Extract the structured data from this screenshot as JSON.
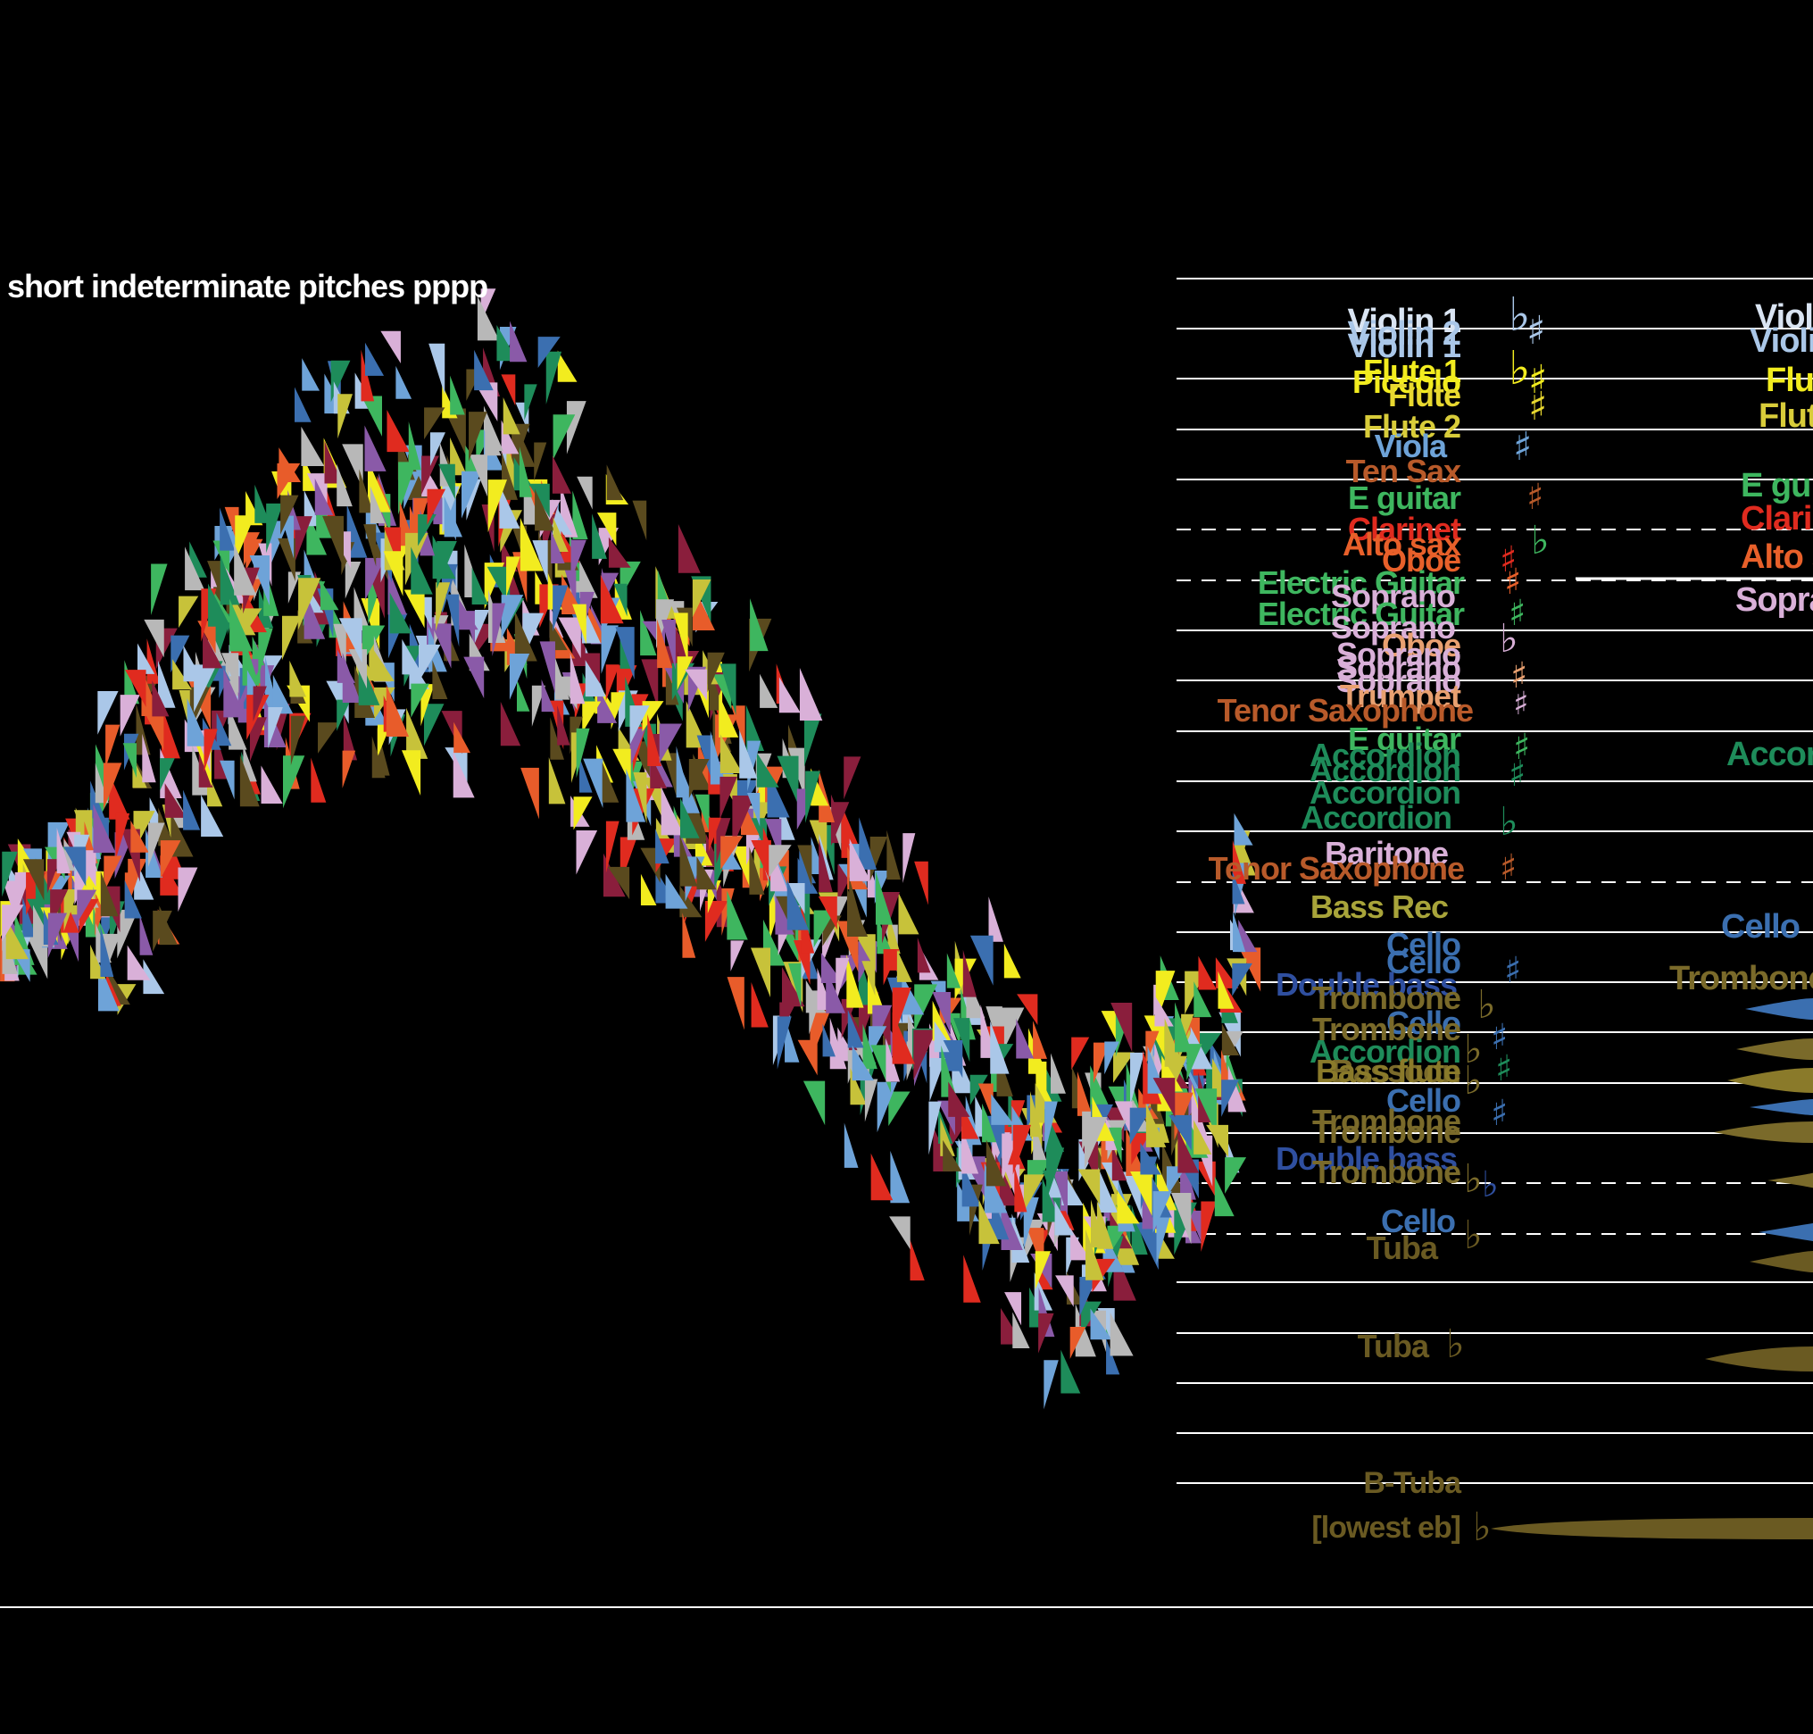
{
  "header": {
    "instruction": "short indeterminate pitches pppp"
  },
  "palette": {
    "background": "#000000",
    "staff_line": "#ffffff",
    "triangle_colors": [
      "#f2ec1f",
      "#6ea3d8",
      "#3b6fb0",
      "#3eb65f",
      "#1e8c5a",
      "#d9b0d8",
      "#8a5aa8",
      "#e85c2a",
      "#e02b1f",
      "#b8b8b8",
      "#5a4a1e",
      "#8a1e3c",
      "#c7c23a",
      "#aac7e8"
    ]
  },
  "instruments_left": [
    {
      "name": "Violin 1",
      "color": "#d9e4f2"
    },
    {
      "name": "Violin 2",
      "color": "#aac7e8"
    },
    {
      "name": "Violin 1",
      "color": "#aac7e8"
    },
    {
      "name": "Flute 1",
      "color": "#f2ec1f"
    },
    {
      "name": "Piccolo",
      "color": "#f2ec1f"
    },
    {
      "name": "Flute",
      "color": "#e8d830"
    },
    {
      "name": "Flute 2",
      "color": "#d8cc3a"
    },
    {
      "name": "Viola",
      "color": "#6ea3d8"
    },
    {
      "name": "Ten Sax",
      "color": "#b85a2a"
    },
    {
      "name": "E guitar",
      "color": "#3eb65f"
    },
    {
      "name": "Clarinet",
      "color": "#e02b1f"
    },
    {
      "name": "Alto sax",
      "color": "#e8602a"
    },
    {
      "name": "Oboe",
      "color": "#e8602a"
    },
    {
      "name": "Electric Guitar",
      "color": "#3eb65f"
    },
    {
      "name": "Soprano",
      "color": "#d9b0d8"
    },
    {
      "name": "Electric Guitar",
      "color": "#3eb65f"
    },
    {
      "name": "Soprano",
      "color": "#d9b0d8"
    },
    {
      "name": "Oboe",
      "color": "#e8a070"
    },
    {
      "name": "Soprano",
      "color": "#d9b0d8"
    },
    {
      "name": "Soprano",
      "color": "#d9b0d8"
    },
    {
      "name": "Soprano",
      "color": "#d9b0d8"
    },
    {
      "name": "Trumpet",
      "color": "#e8a070"
    },
    {
      "name": "Tenor Saxophone",
      "color": "#b85a2a"
    },
    {
      "name": "E guitar",
      "color": "#3eb65f"
    },
    {
      "name": "Accordion",
      "color": "#1e8c5a"
    },
    {
      "name": "Accordion",
      "color": "#1e8c5a"
    },
    {
      "name": "Accordion",
      "color": "#1e8c5a"
    },
    {
      "name": "Accordion",
      "color": "#1e8c5a"
    },
    {
      "name": "Baritone",
      "color": "#d9b0d8"
    },
    {
      "name": "Tenor Saxophone",
      "color": "#b85a2a"
    },
    {
      "name": "Bass Rec",
      "color": "#a8a43a"
    },
    {
      "name": "Cello",
      "color": "#3b6fb0"
    },
    {
      "name": "Cello",
      "color": "#3b6fb0"
    },
    {
      "name": "Double bass",
      "color": "#2f4f9f"
    },
    {
      "name": "Trombone",
      "color": "#7a6a2a"
    },
    {
      "name": "Cello",
      "color": "#3b6fb0"
    },
    {
      "name": "Trombone",
      "color": "#7a6a2a"
    },
    {
      "name": "Accordion",
      "color": "#1e8c5a"
    },
    {
      "name": "Bassoon",
      "color": "#7a6a2a"
    },
    {
      "name": "Bass flute",
      "color": "#8a7a2a"
    },
    {
      "name": "Cello",
      "color": "#3b6fb0"
    },
    {
      "name": "Trombone",
      "color": "#7a6a2a"
    },
    {
      "name": "Trombone",
      "color": "#7a6a2a"
    },
    {
      "name": "Double bass",
      "color": "#2f4f9f"
    },
    {
      "name": "Trombone",
      "color": "#7a6a2a"
    },
    {
      "name": "Cello",
      "color": "#3b6fb0"
    },
    {
      "name": "Tuba",
      "color": "#6a5a22"
    },
    {
      "name": "Tuba",
      "color": "#6a5a22"
    },
    {
      "name": "B-Tuba",
      "color": "#6a5a22"
    },
    {
      "name": "[lowest eb]",
      "color": "#6a5a22"
    }
  ],
  "instruments_right": [
    {
      "name": "Viol",
      "color": "#d9e4f2"
    },
    {
      "name": "Violi",
      "color": "#aac7e8"
    },
    {
      "name": "Flut",
      "color": "#f2ec1f"
    },
    {
      "name": "Flut",
      "color": "#d8cc3a"
    },
    {
      "name": "E gui",
      "color": "#3eb65f"
    },
    {
      "name": "Clari",
      "color": "#e02b1f"
    },
    {
      "name": "Alto s",
      "color": "#e8602a"
    },
    {
      "name": "Sopra",
      "color": "#d9b0d8"
    },
    {
      "name": "Accor",
      "color": "#1e8c5a"
    },
    {
      "name": "Cello",
      "color": "#3b6fb0"
    },
    {
      "name": "Trombone",
      "color": "#7a6a2a"
    }
  ],
  "accidentals": {
    "sharp": "♯",
    "flat": "♭",
    "natural": "♮"
  },
  "icons": {
    "triangle_mark": "triangle-icon",
    "sustained_note": "sustain-wedge-icon"
  }
}
